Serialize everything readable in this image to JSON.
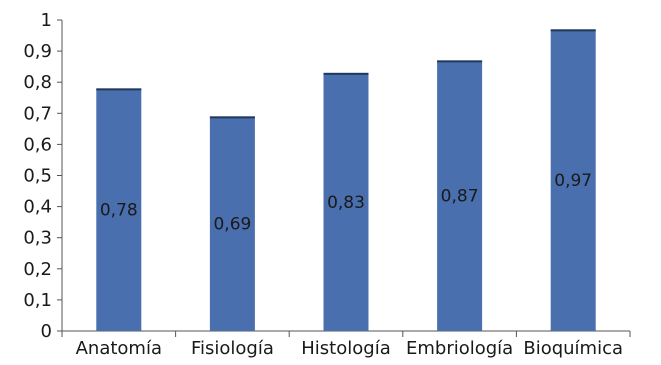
{
  "chart_data": {
    "type": "bar",
    "categories": [
      "Anatomía",
      "Fisiología",
      "Histología",
      "Embriología",
      "Bioquímica"
    ],
    "values": [
      0.78,
      0.69,
      0.83,
      0.87,
      0.97
    ],
    "value_labels": [
      "0,78",
      "0,69",
      "0,83",
      "0,87",
      "0,97"
    ],
    "y_ticks": [
      0,
      0.1,
      0.2,
      0.3,
      0.4,
      0.5,
      0.6,
      0.7,
      0.8,
      0.9,
      1
    ],
    "y_tick_labels": [
      "0",
      "0,1",
      "0,2",
      "0,3",
      "0,4",
      "0,5",
      "0,6",
      "0,7",
      "0,8",
      "0,9",
      "1"
    ],
    "ylim": [
      0,
      1
    ],
    "grid": false,
    "bar_color": "#4a6fae",
    "bar_edge_color": "#22385e",
    "axis_color": "#555555"
  }
}
